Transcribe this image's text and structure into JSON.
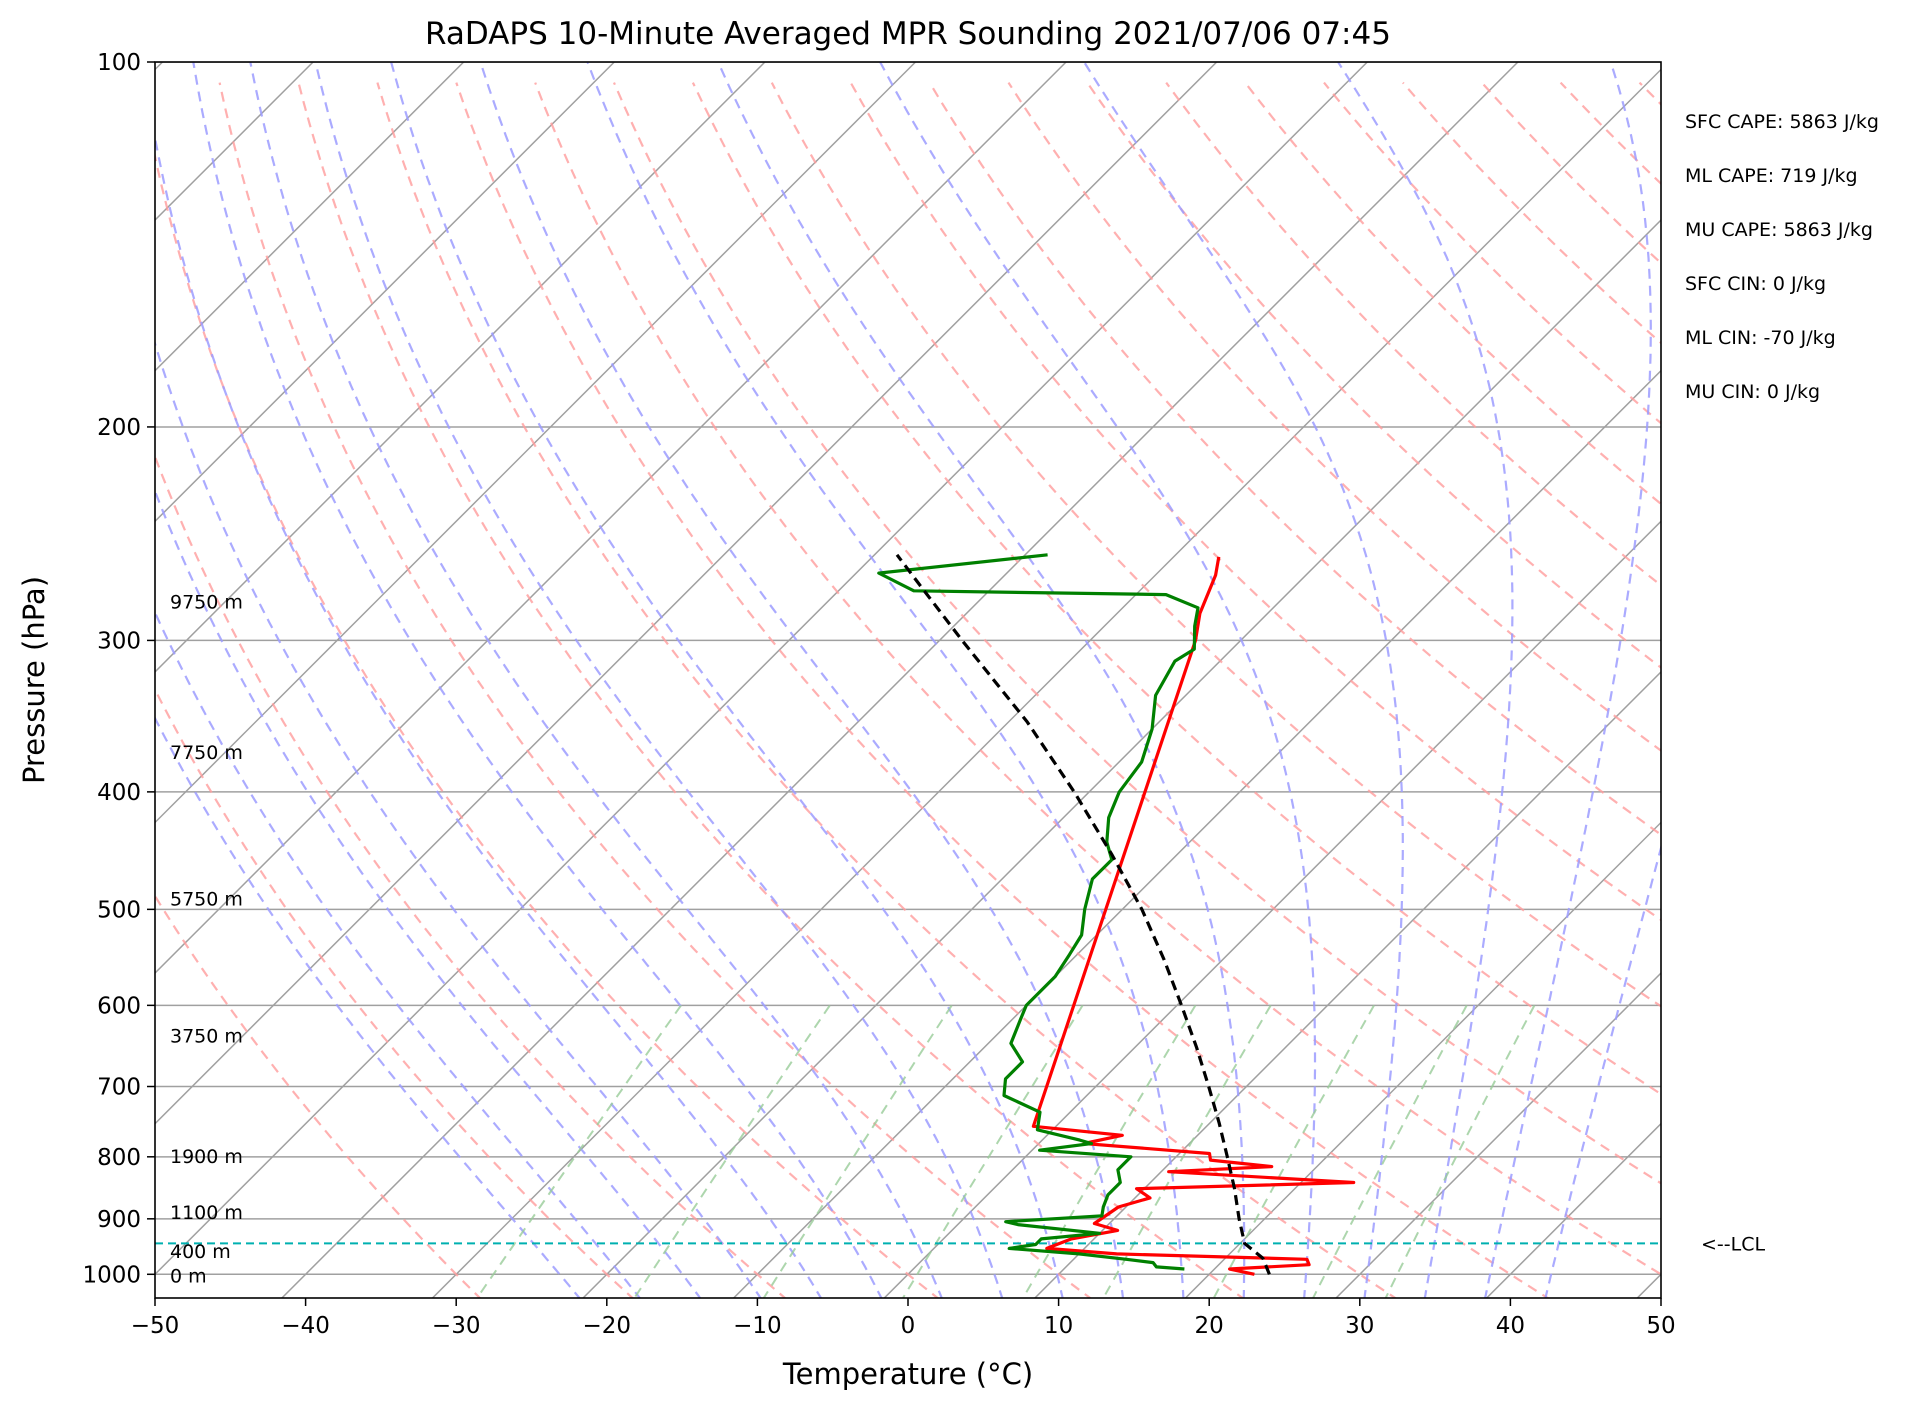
{
  "chart_data": {
    "type": "line",
    "subtype": "skew-T log-P diagram",
    "title": "RaDAPS 10-Minute Averaged MPR Sounding 2021/07/06 07:45",
    "xlabel": "Temperature (°C)",
    "ylabel": "Pressure (hPa)",
    "xlim": [
      -50,
      50
    ],
    "ylim": [
      1050,
      100
    ],
    "y_scale": "log",
    "x_ticks": [
      "−50",
      "−40",
      "−30",
      "−20",
      "−10",
      "0",
      "10",
      "20",
      "30",
      "40",
      "50"
    ],
    "y_ticks": [
      "100",
      "200",
      "300",
      "400",
      "500",
      "600",
      "700",
      "800",
      "900",
      "1000"
    ],
    "grid": true,
    "series": [
      {
        "color": "#ff0000",
        "values": [
          {
            "p": 1000,
            "t": 23.0
          },
          {
            "p": 990,
            "t": 21.0
          },
          {
            "p": 982,
            "t": 26.0
          },
          {
            "p": 972,
            "t": 25.5
          },
          {
            "p": 962,
            "t": 12.5
          },
          {
            "p": 952,
            "t": 7.5
          },
          {
            "p": 935,
            "t": 8.5
          },
          {
            "p": 920,
            "t": 11.0
          },
          {
            "p": 908,
            "t": 9.0
          },
          {
            "p": 880,
            "t": 9.5
          },
          {
            "p": 865,
            "t": 11.0
          },
          {
            "p": 850,
            "t": 9.5
          },
          {
            "p": 840,
            "t": 23.5
          },
          {
            "p": 823,
            "t": 10.5
          },
          {
            "p": 815,
            "t": 17.0
          },
          {
            "p": 805,
            "t": 12.5
          },
          {
            "p": 795,
            "t": 12.0
          },
          {
            "p": 780,
            "t": 3.0
          },
          {
            "p": 768,
            "t": 5.0
          },
          {
            "p": 755,
            "t": -1.5
          },
          {
            "p": 300,
            "t": -23.0
          },
          {
            "p": 285,
            "t": -24.5
          },
          {
            "p": 265,
            "t": -26.0
          },
          {
            "p": 256,
            "t": -27.0
          }
        ]
      },
      {
        "color": "#008000",
        "values": [
          {
            "p": 990,
            "t": 18.0
          },
          {
            "p": 986,
            "t": 16.0
          },
          {
            "p": 978,
            "t": 15.5
          },
          {
            "p": 972,
            "t": 13.5
          },
          {
            "p": 962,
            "t": 10.0
          },
          {
            "p": 952,
            "t": 5.0
          },
          {
            "p": 945,
            "t": 6.5
          },
          {
            "p": 935,
            "t": 6.5
          },
          {
            "p": 925,
            "t": 10.0
          },
          {
            "p": 910,
            "t": 4.0
          },
          {
            "p": 905,
            "t": 3.0
          },
          {
            "p": 895,
            "t": 9.0
          },
          {
            "p": 880,
            "t": 8.5
          },
          {
            "p": 860,
            "t": 8.0
          },
          {
            "p": 840,
            "t": 8.0
          },
          {
            "p": 820,
            "t": 7.0
          },
          {
            "p": 800,
            "t": 7.0
          },
          {
            "p": 790,
            "t": 0.5
          },
          {
            "p": 780,
            "t": 3.5
          },
          {
            "p": 775,
            "t": 2.5
          },
          {
            "p": 760,
            "t": -1.0
          },
          {
            "p": 735,
            "t": -2.0
          },
          {
            "p": 712,
            "t": -5.5
          },
          {
            "p": 690,
            "t": -6.5
          },
          {
            "p": 668,
            "t": -6.5
          },
          {
            "p": 645,
            "t": -8.5
          },
          {
            "p": 615,
            "t": -9.5
          },
          {
            "p": 600,
            "t": -10.0
          },
          {
            "p": 568,
            "t": -10.0
          },
          {
            "p": 545,
            "t": -10.5
          },
          {
            "p": 525,
            "t": -11.0
          },
          {
            "p": 500,
            "t": -12.5
          },
          {
            "p": 472,
            "t": -14.0
          },
          {
            "p": 455,
            "t": -14.0
          },
          {
            "p": 440,
            "t": -15.5
          },
          {
            "p": 420,
            "t": -17.0
          },
          {
            "p": 400,
            "t": -18.0
          },
          {
            "p": 378,
            "t": -18.5
          },
          {
            "p": 355,
            "t": -20.0
          },
          {
            "p": 333,
            "t": -22.0
          },
          {
            "p": 312,
            "t": -23.0
          },
          {
            "p": 305,
            "t": -22.5
          },
          {
            "p": 292,
            "t": -24.0
          },
          {
            "p": 282,
            "t": -25.0
          },
          {
            "p": 275,
            "t": -28.0
          },
          {
            "p": 273,
            "t": -45.0
          },
          {
            "p": 264,
            "t": -48.5
          },
          {
            "p": 255,
            "t": -38.5
          }
        ]
      },
      {
        "color": "#000000",
        "dash": "dashed",
        "values": [
          {
            "p": 1000,
            "t": 24.0
          },
          {
            "p": 970,
            "t": 22.5
          },
          {
            "p": 943,
            "t": 20.3
          },
          {
            "p": 900,
            "t": 18.3
          },
          {
            "p": 850,
            "t": 16.0
          },
          {
            "p": 800,
            "t": 13.4
          },
          {
            "p": 750,
            "t": 10.6
          },
          {
            "p": 700,
            "t": 7.5
          },
          {
            "p": 650,
            "t": 4.1
          },
          {
            "p": 600,
            "t": 0.3
          },
          {
            "p": 550,
            "t": -3.9
          },
          {
            "p": 500,
            "t": -8.7
          },
          {
            "p": 450,
            "t": -14.4
          },
          {
            "p": 400,
            "t": -21.0
          },
          {
            "p": 350,
            "t": -28.8
          },
          {
            "p": 300,
            "t": -38.5
          },
          {
            "p": 270,
            "t": -45.0
          },
          {
            "p": 255,
            "t": -48.5
          }
        ]
      }
    ],
    "lcl": {
      "p": 943,
      "label": "<--LCL",
      "color": "#00b0b0"
    },
    "height_labels": [
      {
        "p": 1000,
        "label": "0 m"
      },
      {
        "p": 955,
        "label": "400 m"
      },
      {
        "p": 887,
        "label": "1100 m"
      },
      {
        "p": 797,
        "label": "1900 m"
      },
      {
        "p": 634,
        "label": "3750 m"
      },
      {
        "p": 489,
        "label": "5750 m"
      },
      {
        "p": 370,
        "label": "7750 m"
      },
      {
        "p": 278,
        "label": "9750 m"
      }
    ],
    "indices": [
      "SFC CAPE: 5863 J/kg",
      "ML CAPE: 719 J/kg",
      "MU CAPE: 5863 J/kg",
      "SFC CIN: 0 J/kg",
      "ML CIN: -70 J/kg",
      "MU CIN: 0 J/kg"
    ],
    "reference_lines": {
      "isotherms_color": "#a0a0a0",
      "dry_adiabats_color": "#ff9c9c",
      "moist_adiabats_color": "#9c9cff",
      "mixing_ratio_color": "#99cc99"
    }
  }
}
